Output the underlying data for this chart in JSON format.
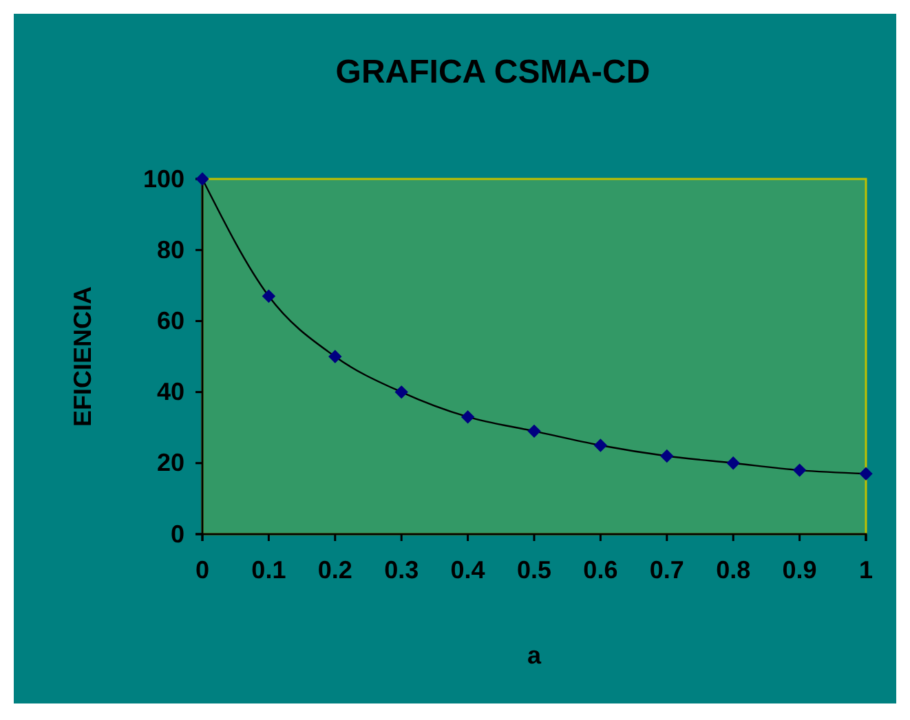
{
  "chart_data": {
    "type": "line",
    "title": "GRAFICA CSMA-CD",
    "xlabel": "a",
    "ylabel": "EFICIENCIA",
    "x": [
      0,
      0.1,
      0.2,
      0.3,
      0.4,
      0.5,
      0.6,
      0.7,
      0.8,
      0.9,
      1
    ],
    "series": [
      {
        "color": "#000080",
        "values": [
          100,
          67,
          50,
          40,
          33,
          29,
          25,
          22,
          20,
          18,
          17
        ]
      }
    ],
    "xlim": [
      0,
      1
    ],
    "xticks": [
      0,
      0.1,
      0.2,
      0.3,
      0.4,
      0.5,
      0.6,
      0.7,
      0.8,
      0.9,
      1
    ],
    "ylim": [
      0,
      100
    ],
    "yticks": [
      0,
      20,
      40,
      60,
      80,
      100
    ],
    "grid": false,
    "marker": "diamond",
    "line_style": "solid"
  }
}
